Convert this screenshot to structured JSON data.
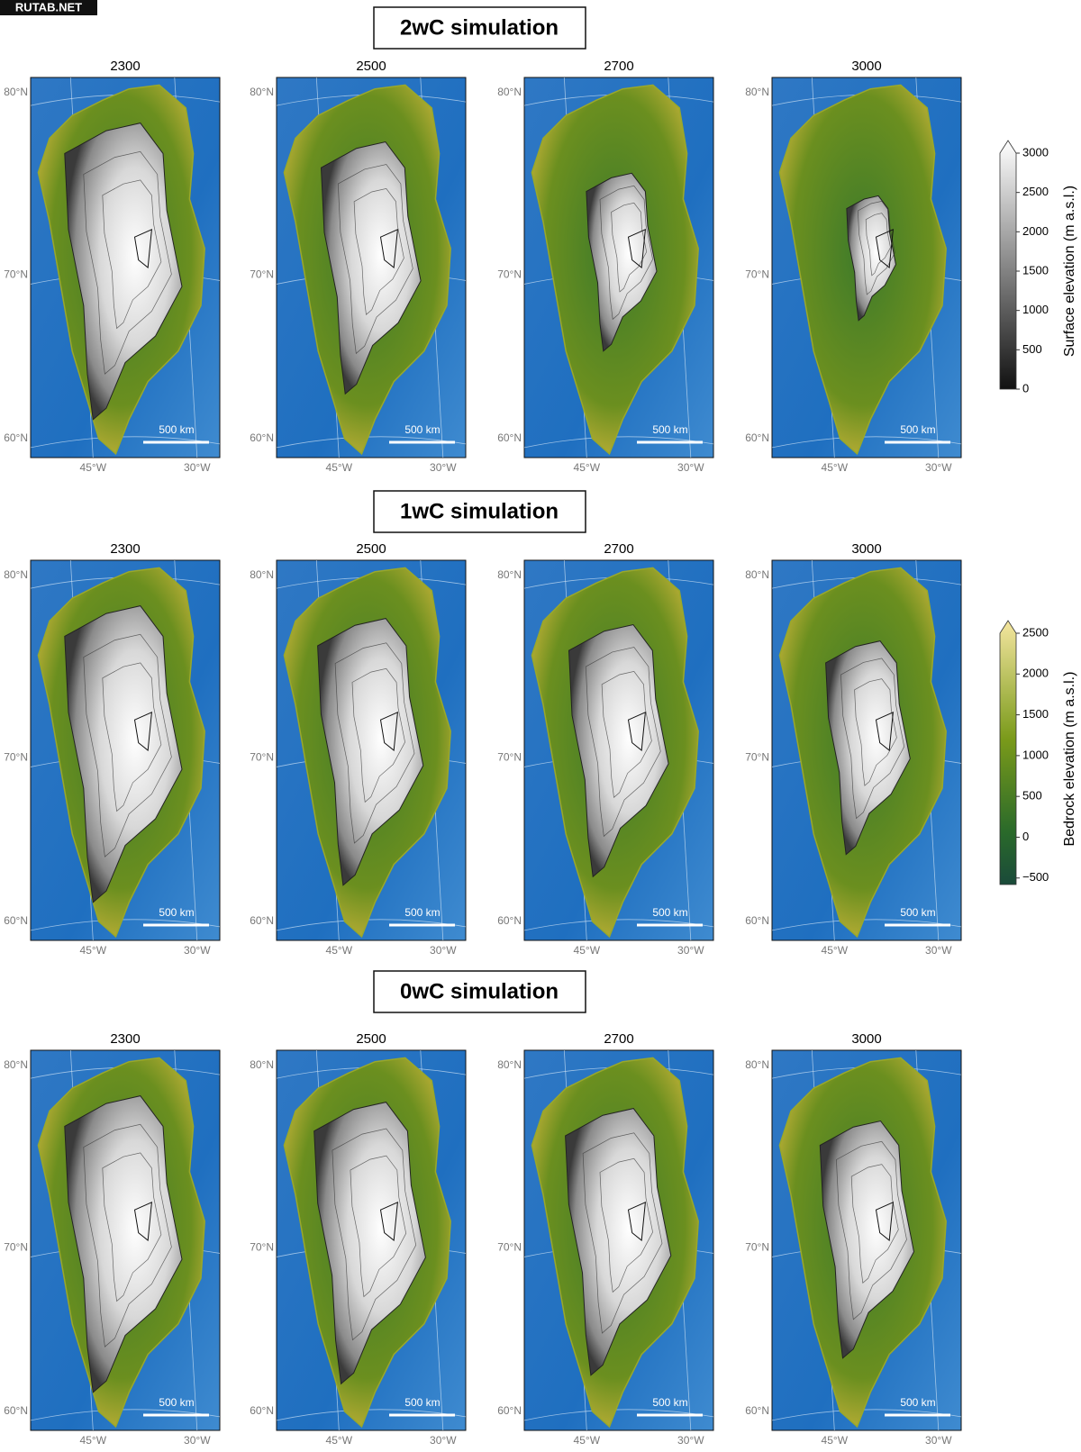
{
  "watermark": "RUTAB.NET",
  "lat_labels": [
    "80°N",
    "70°N",
    "60°N"
  ],
  "lon_labels": [
    "45°W",
    "30°W"
  ],
  "scale_bar": "500 km",
  "rows": [
    {
      "title": "2wC simulation",
      "years": [
        2300,
        2500,
        2700,
        3000
      ]
    },
    {
      "title": "1wC simulation",
      "years": [
        2300,
        2500,
        2700,
        3000
      ]
    },
    {
      "title": "0wC simulation",
      "years": [
        2300,
        2500,
        2700,
        3000
      ]
    }
  ],
  "colorbars": [
    {
      "label": "Surface elevation (m a.s.l.)",
      "range": [
        0,
        3000
      ],
      "ticks": [
        0,
        500,
        1000,
        1500,
        2000,
        2500,
        3000
      ]
    },
    {
      "label": "Bedrock elevation (m a.s.l.)",
      "range": [
        -580,
        2500
      ],
      "ticks": [
        {
          "value": -500,
          "label": "−500"
        },
        0,
        500,
        1000,
        1500,
        2000,
        2500
      ]
    }
  ]
}
